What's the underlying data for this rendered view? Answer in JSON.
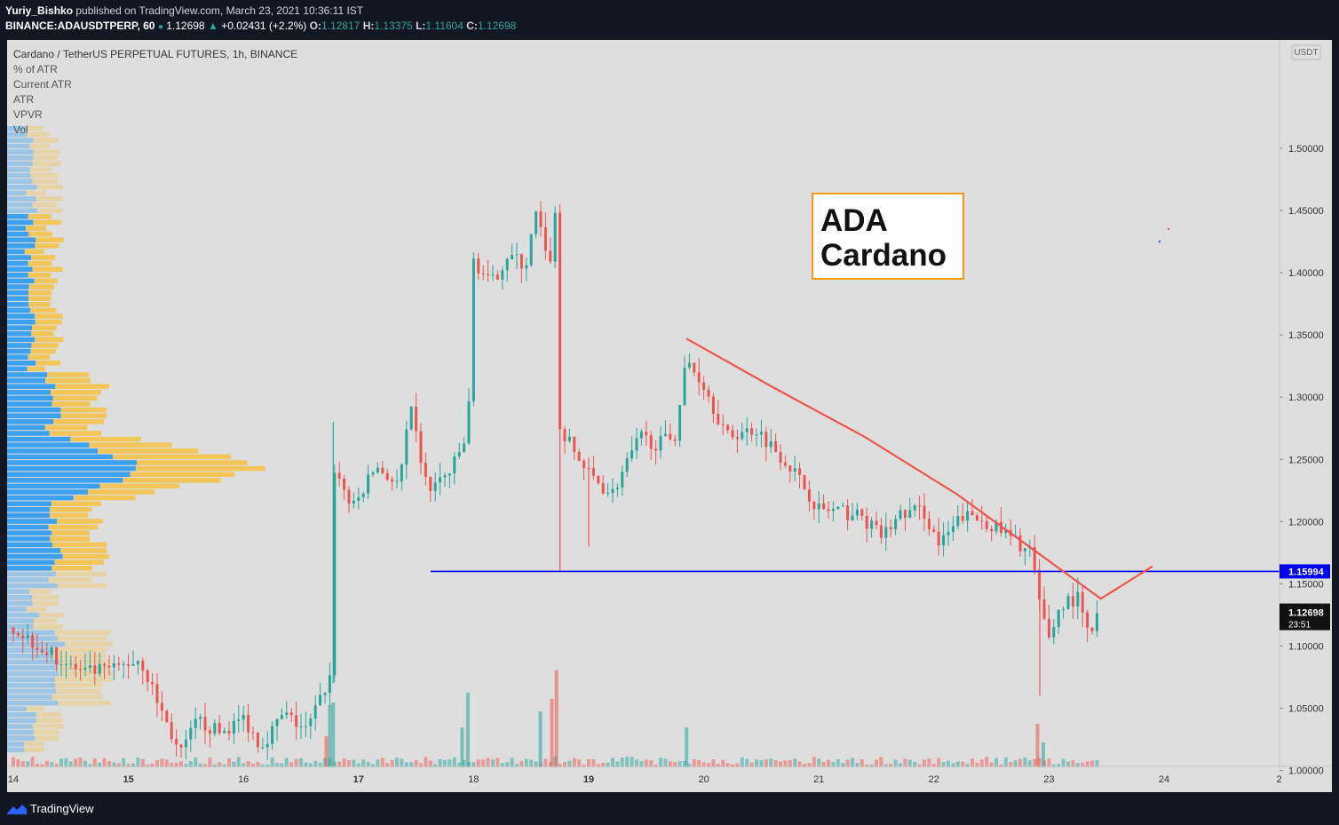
{
  "header": {
    "author": "Yuriy_Bishko",
    "published": "published on TradingView.com, March 23, 2021 10:36:11 IST",
    "symbol": "BINANCE:ADAUSDTPERP, 60",
    "price": "1.12698",
    "change": "+0.02431 (+2.2%)",
    "open_label": "O:",
    "open": "1.12817",
    "high_label": "H:",
    "high": "1.13375",
    "low_label": "L:",
    "low": "1.11604",
    "close_label": "C:",
    "close": "1.12698"
  },
  "legend": {
    "title": "Cardano / TetherUS PERPETUAL FUTURES, 1h, BINANCE",
    "items": [
      "% of ATR",
      "Current ATR",
      "ATR",
      "VPVR",
      "Vol"
    ]
  },
  "annotation": {
    "line1": "ADA",
    "line2": "Cardano"
  },
  "footer": {
    "brand": "TradingView"
  },
  "colors": {
    "up": "#26a69a",
    "down": "#ef5350",
    "support": "#0000ee",
    "trend": "#ef5350",
    "vp_up": "#2196f3",
    "vp_down": "#f7c244",
    "box_border": "#f39c12"
  },
  "chart_data": {
    "type": "candlestick",
    "currency": "USDT",
    "y_ticks": [
      "1.50000",
      "1.45000",
      "1.40000",
      "1.35000",
      "1.30000",
      "1.25000",
      "1.20000",
      "1.15000",
      "1.10000",
      "1.05000",
      "1.00000"
    ],
    "ylim": [
      0.955,
      1.52
    ],
    "x_ticks": [
      "14",
      "15",
      "16",
      "17",
      "18",
      "19",
      "20",
      "21",
      "22",
      "23",
      "24",
      "2"
    ],
    "support_level": {
      "value": 1.15994,
      "label": "1.15994"
    },
    "last_price": {
      "value": 1.12698,
      "label": "1.12698",
      "countdown": "23:51"
    },
    "trendline": [
      [
        19.85,
        1.347
      ],
      [
        20.6,
        1.308
      ],
      [
        21.4,
        1.268
      ],
      [
        22.2,
        1.222
      ],
      [
        22.9,
        1.175
      ],
      [
        23.45,
        1.138
      ],
      [
        23.9,
        1.164
      ]
    ],
    "path": [
      [
        14.0,
        1.115
      ],
      [
        14.3,
        1.095
      ],
      [
        14.6,
        1.078
      ],
      [
        14.9,
        1.082
      ],
      [
        15.1,
        1.09
      ],
      [
        15.3,
        1.045
      ],
      [
        15.45,
        1.012
      ],
      [
        15.6,
        1.04
      ],
      [
        15.8,
        1.03
      ],
      [
        16.0,
        1.042
      ],
      [
        16.15,
        1.02
      ],
      [
        16.35,
        1.045
      ],
      [
        16.55,
        1.032
      ],
      [
        16.75,
        1.075
      ],
      [
        16.78,
        1.245
      ],
      [
        16.95,
        1.21
      ],
      [
        17.15,
        1.245
      ],
      [
        17.35,
        1.228
      ],
      [
        17.45,
        1.29
      ],
      [
        17.6,
        1.225
      ],
      [
        17.8,
        1.24
      ],
      [
        17.95,
        1.27
      ],
      [
        18.0,
        1.41
      ],
      [
        18.15,
        1.39
      ],
      [
        18.3,
        1.415
      ],
      [
        18.45,
        1.405
      ],
      [
        18.55,
        1.45
      ],
      [
        18.65,
        1.4
      ],
      [
        18.72,
        1.455
      ],
      [
        18.75,
        1.275
      ],
      [
        18.9,
        1.252
      ],
      [
        19.0,
        1.238
      ],
      [
        19.2,
        1.222
      ],
      [
        19.45,
        1.268
      ],
      [
        19.6,
        1.262
      ],
      [
        19.75,
        1.27
      ],
      [
        19.85,
        1.33
      ],
      [
        20.0,
        1.31
      ],
      [
        20.2,
        1.268
      ],
      [
        20.45,
        1.275
      ],
      [
        20.75,
        1.245
      ],
      [
        21.0,
        1.21
      ],
      [
        21.15,
        1.208
      ],
      [
        21.35,
        1.205
      ],
      [
        21.55,
        1.188
      ],
      [
        21.7,
        1.205
      ],
      [
        21.9,
        1.21
      ],
      [
        22.05,
        1.18
      ],
      [
        22.25,
        1.205
      ],
      [
        22.45,
        1.2
      ],
      [
        22.65,
        1.188
      ],
      [
        22.85,
        1.175
      ],
      [
        22.92,
        1.13
      ],
      [
        23.0,
        1.108
      ],
      [
        23.12,
        1.135
      ],
      [
        23.25,
        1.138
      ],
      [
        23.35,
        1.105
      ],
      [
        23.43,
        1.127
      ]
    ],
    "volume_spikes": [
      [
        16.75,
        0.05,
        "up"
      ],
      [
        16.78,
        0.052,
        "up"
      ],
      [
        16.72,
        0.025,
        "down"
      ],
      [
        17.95,
        0.06,
        "up"
      ],
      [
        17.9,
        0.032,
        "up"
      ],
      [
        18.58,
        0.045,
        "up"
      ],
      [
        18.72,
        0.078,
        "down"
      ],
      [
        18.68,
        0.055,
        "down"
      ],
      [
        19.85,
        0.032,
        "up"
      ],
      [
        22.9,
        0.035,
        "down"
      ],
      [
        22.95,
        0.02,
        "up"
      ]
    ]
  }
}
